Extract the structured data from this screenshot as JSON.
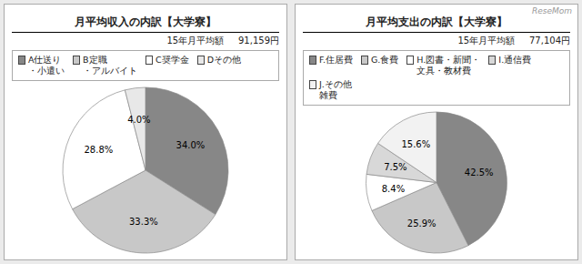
{
  "chart_data": [
    {
      "type": "pie",
      "title": "月平均収入の内訳【大学寮】",
      "subtitle": "15年月平均額     91,159円",
      "categories": [
        "A仕送り\n・小遣い",
        "B定職\n・アルバイト",
        "C奨学金",
        "Dその他"
      ],
      "values": [
        34.0,
        33.3,
        28.8,
        4.0
      ],
      "value_labels": [
        "34.0%",
        "33.3%",
        "28.8%",
        "4.0%"
      ],
      "colors": [
        "#878787",
        "#c8c8c8",
        "#ffffff",
        "#e8e8e8"
      ],
      "data_labels": true,
      "legend": "top"
    },
    {
      "type": "pie",
      "title": "月平均支出の内訳【大学寮】",
      "subtitle": "15年月平均額     77,104円",
      "categories": [
        "F.住居費",
        "G.食費",
        "H.図書・新聞・\n文具・教材費",
        "I.通信費",
        "J.その他\n雑費"
      ],
      "values": [
        42.5,
        25.9,
        8.4,
        7.5,
        15.6
      ],
      "value_labels": [
        "42.5%",
        "25.9%",
        "8.4%",
        "7.5%",
        "15.6%"
      ],
      "colors": [
        "#878787",
        "#c8c8c8",
        "#ffffff",
        "#d8d8d8",
        "#f2f2f2"
      ],
      "data_labels": true,
      "legend": "top",
      "annotations": [
        "ReseMom"
      ]
    }
  ]
}
